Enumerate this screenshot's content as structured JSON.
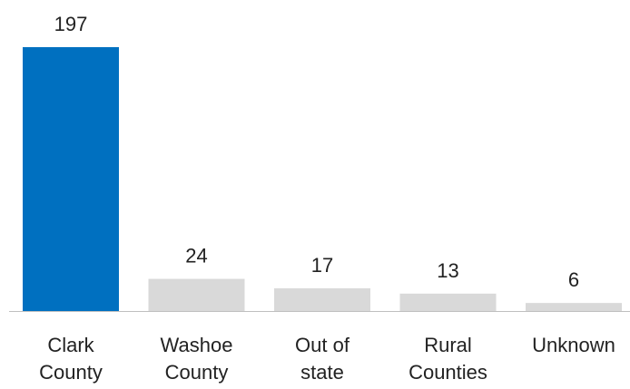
{
  "chart_data": {
    "type": "bar",
    "categories": [
      "Clark County",
      "Washoe County",
      "Out of state",
      "Rural Counties",
      "Unknown"
    ],
    "values": [
      197,
      24,
      17,
      13,
      6
    ],
    "colors": [
      "#0070c0",
      "#d9d9d9",
      "#d9d9d9",
      "#d9d9d9",
      "#d9d9d9"
    ]
  }
}
